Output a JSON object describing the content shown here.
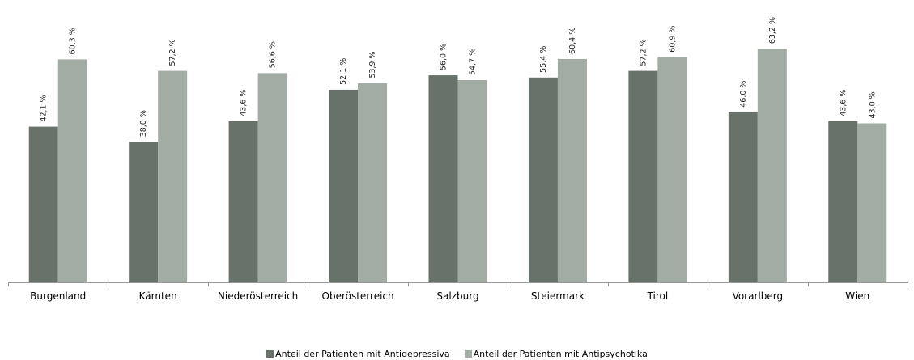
{
  "chart_data": {
    "type": "bar",
    "categories": [
      "Burgenland",
      "Kärnten",
      "Niederösterreich",
      "Oberösterreich",
      "Salzburg",
      "Steiermark",
      "Tirol",
      "Vorarlberg",
      "Wien"
    ],
    "series": [
      {
        "name": "Anteil der Patienten mit Antidepressiva",
        "values": [
          42.1,
          38.0,
          43.6,
          52.1,
          56.0,
          55.4,
          57.2,
          46.0,
          43.6
        ],
        "labels": [
          "42,1 %",
          "38,0 %",
          "43,6 %",
          "52,1 %",
          "56,0 %",
          "55,4 %",
          "57,2 %",
          "46,0 %",
          "43,6 %"
        ],
        "color": "#68726a"
      },
      {
        "name": "Anteil der Patienten mit Antipsychotika",
        "values": [
          60.3,
          57.2,
          56.6,
          53.9,
          54.7,
          60.4,
          60.9,
          63.2,
          43.0
        ],
        "labels": [
          "60,3 %",
          "57,2 %",
          "56,6 %",
          "53,9 %",
          "54,7 %",
          "60,4 %",
          "60,9 %",
          "63,2 %",
          "43,0 %"
        ],
        "color": "#a3aba5"
      }
    ],
    "ylim": [
      0,
      70
    ],
    "grid": false,
    "legend_position": "bottom"
  }
}
